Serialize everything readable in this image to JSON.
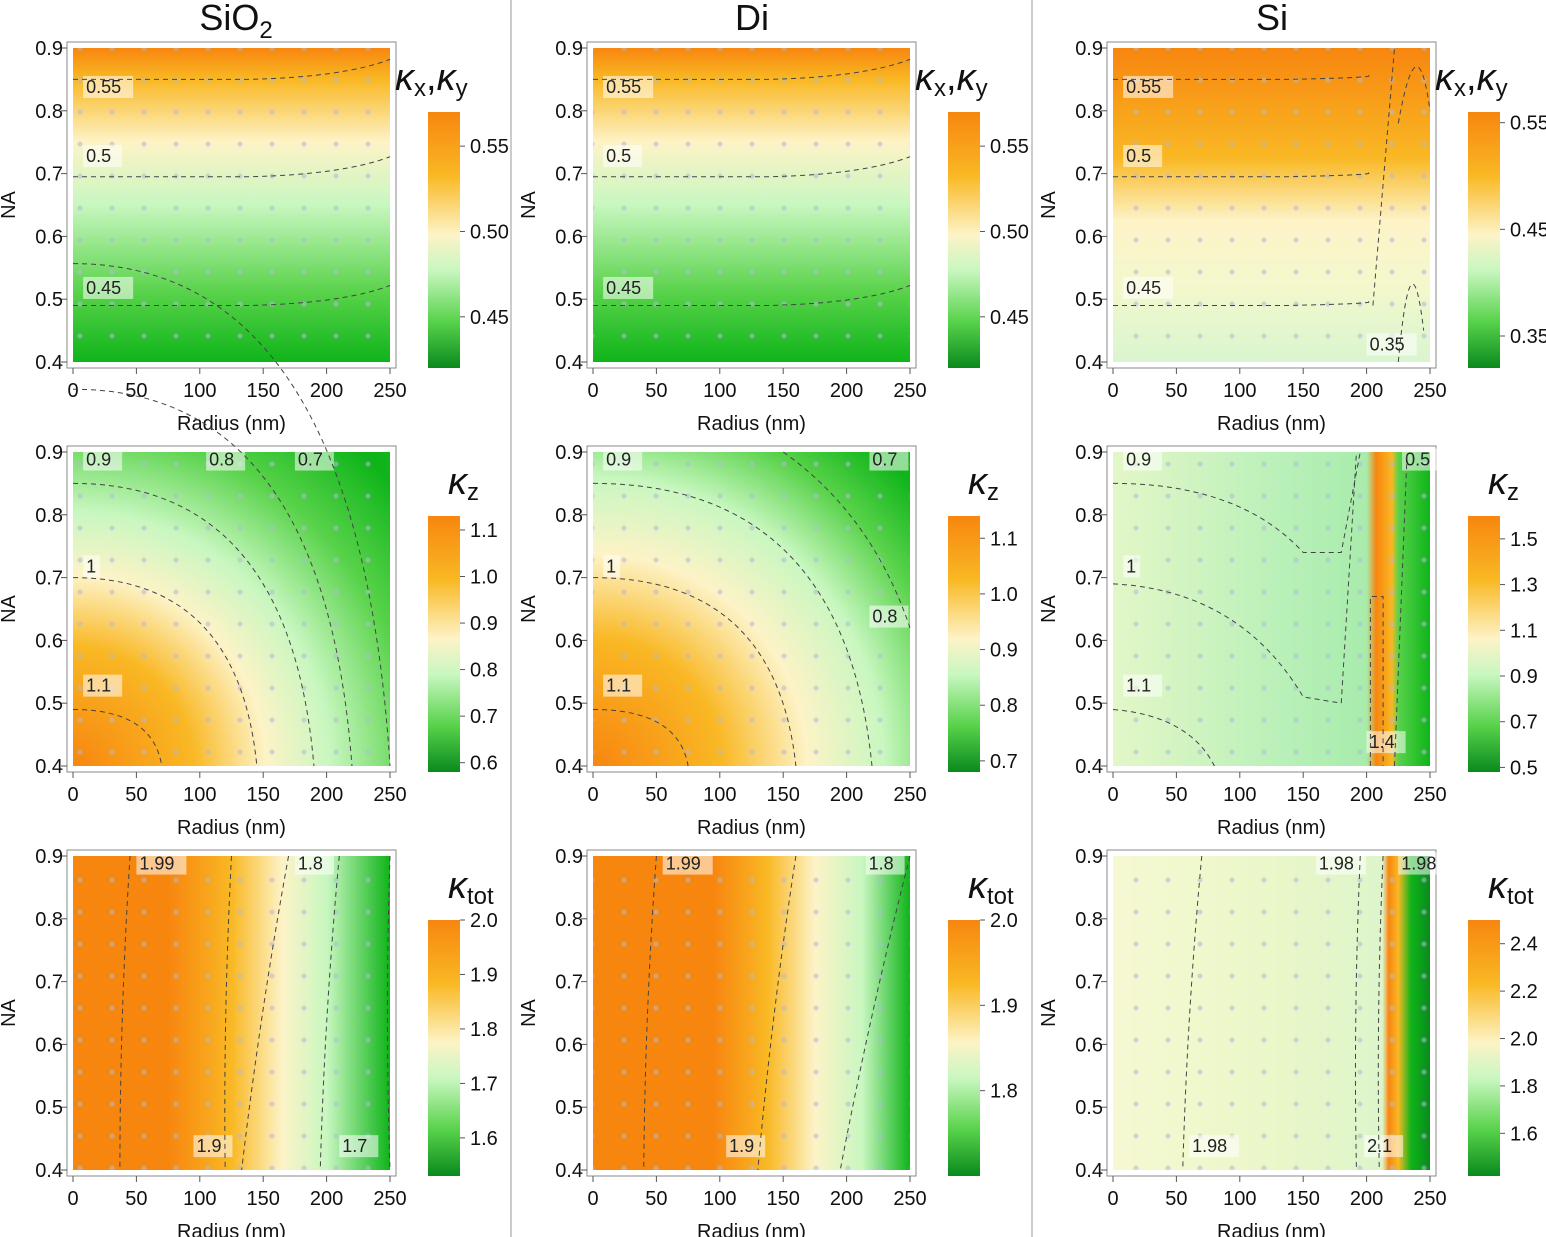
{
  "figure": {
    "columns": [
      {
        "title": "SiO",
        "title_sub": "2"
      },
      {
        "title": "Di",
        "title_sub": ""
      },
      {
        "title": "Si",
        "title_sub": ""
      }
    ],
    "row_symbols": [
      {
        "main": "κ",
        "sub": "x",
        "sep": ",",
        "main2": "κ",
        "sub2": "y"
      },
      {
        "main": "κ",
        "sub": "z"
      },
      {
        "main": "κ",
        "sub": "tot"
      }
    ],
    "colors": {
      "orange": "#f7860f",
      "amber": "#f9b824",
      "cream": "#fdf3c7",
      "lightgreen": "#c8f7c0",
      "midgreen": "#58d24a",
      "green": "#0fb41a",
      "darkgreen": "#0a8a1e",
      "contour": "#444444",
      "grid_dot": "#b3b8dc",
      "divider": "#999999"
    }
  },
  "chart_data": [
    {
      "type": "heatmap",
      "material": "SiO2",
      "quantity": "κx,κy",
      "xlabel": "Radius (nm)",
      "ylabel": "NA",
      "xlim": [
        0,
        250
      ],
      "ylim": [
        0.4,
        0.9
      ],
      "xticks": [
        "0",
        "50",
        "100",
        "150",
        "200",
        "250"
      ],
      "yticks": [
        "0.4",
        "0.5",
        "0.6",
        "0.7",
        "0.8",
        "0.9"
      ],
      "colorbar": {
        "ticks": [
          "0.45",
          "0.50",
          "0.55"
        ],
        "tick_values": [
          0.45,
          0.5,
          0.55
        ],
        "range": [
          0.42,
          0.57
        ]
      },
      "contour_labels": [
        {
          "text": "0.55",
          "x": 8,
          "y": 0.83
        },
        {
          "text": "0.5",
          "x": 8,
          "y": 0.72
        },
        {
          "text": "0.45",
          "x": 8,
          "y": 0.51
        }
      ]
    },
    {
      "type": "heatmap",
      "material": "Di",
      "quantity": "κx,κy",
      "xlabel": "Radius (nm)",
      "ylabel": "NA",
      "xlim": [
        0,
        250
      ],
      "ylim": [
        0.4,
        0.9
      ],
      "xticks": [
        "0",
        "50",
        "100",
        "150",
        "200",
        "250"
      ],
      "yticks": [
        "0.4",
        "0.5",
        "0.6",
        "0.7",
        "0.8",
        "0.9"
      ],
      "colorbar": {
        "ticks": [
          "0.45",
          "0.50",
          "0.55"
        ],
        "tick_values": [
          0.45,
          0.5,
          0.55
        ],
        "range": [
          0.42,
          0.57
        ]
      },
      "contour_labels": [
        {
          "text": "0.55",
          "x": 8,
          "y": 0.83
        },
        {
          "text": "0.5",
          "x": 8,
          "y": 0.72
        },
        {
          "text": "0.45",
          "x": 8,
          "y": 0.51
        }
      ]
    },
    {
      "type": "heatmap",
      "material": "Si",
      "quantity": "κx,κy",
      "xlabel": "Radius (nm)",
      "ylabel": "NA",
      "xlim": [
        0,
        250
      ],
      "ylim": [
        0.4,
        0.9
      ],
      "xticks": [
        "0",
        "50",
        "100",
        "150",
        "200",
        "250"
      ],
      "yticks": [
        "0.4",
        "0.5",
        "0.6",
        "0.7",
        "0.8",
        "0.9"
      ],
      "colorbar": {
        "ticks": [
          "0.35",
          "0.45",
          "0.55"
        ],
        "tick_values": [
          0.35,
          0.45,
          0.55
        ],
        "range": [
          0.32,
          0.56
        ]
      },
      "contour_labels": [
        {
          "text": "0.55",
          "x": 8,
          "y": 0.83
        },
        {
          "text": "0.5",
          "x": 8,
          "y": 0.72
        },
        {
          "text": "0.45",
          "x": 8,
          "y": 0.51
        },
        {
          "text": "0.35",
          "x": 200,
          "y": 0.42
        }
      ]
    },
    {
      "type": "heatmap",
      "material": "SiO2",
      "quantity": "κz",
      "xlabel": "Radius (nm)",
      "ylabel": "NA",
      "xlim": [
        0,
        250
      ],
      "ylim": [
        0.4,
        0.9
      ],
      "xticks": [
        "0",
        "50",
        "100",
        "150",
        "200",
        "250"
      ],
      "yticks": [
        "0.4",
        "0.5",
        "0.6",
        "0.7",
        "0.8",
        "0.9"
      ],
      "colorbar": {
        "ticks": [
          "0.6",
          "0.7",
          "0.8",
          "0.9",
          "1.0",
          "1.1"
        ],
        "tick_values": [
          0.6,
          0.7,
          0.8,
          0.9,
          1.0,
          1.1
        ],
        "range": [
          0.58,
          1.13
        ]
      },
      "contour_labels": [
        {
          "text": "0.9",
          "x": 8,
          "y": 0.88
        },
        {
          "text": "0.8",
          "x": 105,
          "y": 0.88
        },
        {
          "text": "0.7",
          "x": 175,
          "y": 0.88
        },
        {
          "text": "1",
          "x": 8,
          "y": 0.71
        },
        {
          "text": "1.1",
          "x": 8,
          "y": 0.52
        }
      ]
    },
    {
      "type": "heatmap",
      "material": "Di",
      "quantity": "κz",
      "xlabel": "Radius (nm)",
      "ylabel": "NA",
      "xlim": [
        0,
        250
      ],
      "ylim": [
        0.4,
        0.9
      ],
      "xticks": [
        "0",
        "50",
        "100",
        "150",
        "200",
        "250"
      ],
      "yticks": [
        "0.4",
        "0.5",
        "0.6",
        "0.7",
        "0.8",
        "0.9"
      ],
      "colorbar": {
        "ticks": [
          "0.7",
          "0.8",
          "0.9",
          "1.0",
          "1.1"
        ],
        "tick_values": [
          0.7,
          0.8,
          0.9,
          1.0,
          1.1
        ],
        "range": [
          0.68,
          1.14
        ]
      },
      "contour_labels": [
        {
          "text": "0.9",
          "x": 8,
          "y": 0.88
        },
        {
          "text": "0.7",
          "x": 218,
          "y": 0.88
        },
        {
          "text": "0.8",
          "x": 218,
          "y": 0.63
        },
        {
          "text": "1",
          "x": 8,
          "y": 0.71
        },
        {
          "text": "1.1",
          "x": 8,
          "y": 0.52
        }
      ]
    },
    {
      "type": "heatmap",
      "material": "Si",
      "quantity": "κz",
      "xlabel": "Radius (nm)",
      "ylabel": "NA",
      "xlim": [
        0,
        250
      ],
      "ylim": [
        0.4,
        0.9
      ],
      "xticks": [
        "0",
        "50",
        "100",
        "150",
        "200",
        "250"
      ],
      "yticks": [
        "0.4",
        "0.5",
        "0.6",
        "0.7",
        "0.8",
        "0.9"
      ],
      "colorbar": {
        "ticks": [
          "0.5",
          "0.7",
          "0.9",
          "1.1",
          "1.3",
          "1.5"
        ],
        "tick_values": [
          0.5,
          0.7,
          0.9,
          1.1,
          1.3,
          1.5
        ],
        "range": [
          0.48,
          1.6
        ]
      },
      "contour_labels": [
        {
          "text": "0.9",
          "x": 8,
          "y": 0.88
        },
        {
          "text": "0.5",
          "x": 228,
          "y": 0.88
        },
        {
          "text": "1",
          "x": 8,
          "y": 0.71
        },
        {
          "text": "1.1",
          "x": 8,
          "y": 0.52
        },
        {
          "text": "1.4",
          "x": 200,
          "y": 0.43
        }
      ]
    },
    {
      "type": "heatmap",
      "material": "SiO2",
      "quantity": "κtot",
      "xlabel": "Radius (nm)",
      "ylabel": "NA",
      "xlim": [
        0,
        250
      ],
      "ylim": [
        0.4,
        0.9
      ],
      "xticks": [
        "0",
        "50",
        "100",
        "150",
        "200",
        "250"
      ],
      "yticks": [
        "0.4",
        "0.5",
        "0.6",
        "0.7",
        "0.8",
        "0.9"
      ],
      "colorbar": {
        "ticks": [
          "1.6",
          "1.7",
          "1.8",
          "1.9",
          "2.0"
        ],
        "tick_values": [
          1.6,
          1.7,
          1.8,
          1.9,
          2.0
        ],
        "range": [
          1.53,
          2.0
        ]
      },
      "contour_labels": [
        {
          "text": "1.99",
          "x": 50,
          "y": 0.88
        },
        {
          "text": "1.8",
          "x": 175,
          "y": 0.88
        },
        {
          "text": "1.9",
          "x": 95,
          "y": 0.43
        },
        {
          "text": "1.7",
          "x": 210,
          "y": 0.43
        }
      ]
    },
    {
      "type": "heatmap",
      "material": "Di",
      "quantity": "κtot",
      "xlabel": "Radius (nm)",
      "ylabel": "NA",
      "xlim": [
        0,
        250
      ],
      "ylim": [
        0.4,
        0.9
      ],
      "xticks": [
        "0",
        "50",
        "100",
        "150",
        "200",
        "250"
      ],
      "yticks": [
        "0.4",
        "0.5",
        "0.6",
        "0.7",
        "0.8",
        "0.9"
      ],
      "colorbar": {
        "ticks": [
          "1.8",
          "1.9",
          "2.0"
        ],
        "tick_values": [
          1.8,
          1.9,
          2.0
        ],
        "range": [
          1.7,
          2.0
        ]
      },
      "contour_labels": [
        {
          "text": "1.99",
          "x": 55,
          "y": 0.88
        },
        {
          "text": "1.8",
          "x": 215,
          "y": 0.88
        },
        {
          "text": "1.9",
          "x": 105,
          "y": 0.43
        }
      ]
    },
    {
      "type": "heatmap",
      "material": "Si",
      "quantity": "κtot",
      "xlabel": "Radius (nm)",
      "ylabel": "NA",
      "xlim": [
        0,
        250
      ],
      "ylim": [
        0.4,
        0.9
      ],
      "xticks": [
        "0",
        "50",
        "100",
        "150",
        "200",
        "250"
      ],
      "yticks": [
        "0.4",
        "0.5",
        "0.6",
        "0.7",
        "0.8",
        "0.9"
      ],
      "colorbar": {
        "ticks": [
          "1.6",
          "1.8",
          "2.0",
          "2.2",
          "2.4"
        ],
        "tick_values": [
          1.6,
          1.8,
          2.0,
          2.2,
          2.4
        ],
        "range": [
          1.42,
          2.5
        ]
      },
      "contour_labels": [
        {
          "text": "1.98",
          "x": 160,
          "y": 0.88
        },
        {
          "text": "1.98",
          "x": 225,
          "y": 0.88
        },
        {
          "text": "1.98",
          "x": 60,
          "y": 0.43
        },
        {
          "text": "2.1",
          "x": 198,
          "y": 0.43
        }
      ]
    }
  ]
}
